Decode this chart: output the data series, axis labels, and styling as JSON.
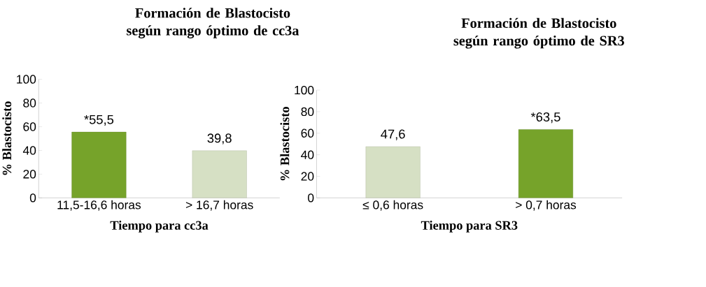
{
  "chart_data": [
    {
      "type": "bar",
      "title": "Formación de Blastocisto según rango óptimo de cc3a",
      "xlabel": "Tiempo para cc3a",
      "ylabel": "% Blastocisto",
      "categories": [
        "11,5-16,6 horas",
        "> 16,7 horas"
      ],
      "values": [
        55.5,
        39.8
      ],
      "colors": [
        "#76a32a",
        "#d6e0c4"
      ],
      "value_labels": [
        "*55,5",
        "39,8"
      ],
      "ylim": [
        0,
        100
      ],
      "yticks": [
        0,
        20,
        40,
        60,
        80,
        100
      ]
    },
    {
      "type": "bar",
      "title": "Formación de Blastocisto según rango óptimo de SR3",
      "xlabel": "Tiempo para SR3",
      "ylabel": "% Blastocisto",
      "categories": [
        "≤ 0,6 horas",
        "> 0,7 horas"
      ],
      "values": [
        47.6,
        63.5
      ],
      "colors": [
        "#d6e0c4",
        "#76a32a"
      ],
      "value_labels": [
        "47,6",
        "*63,5"
      ],
      "ylim": [
        0,
        100
      ],
      "yticks": [
        0,
        20,
        40,
        60,
        80,
        100
      ]
    }
  ]
}
